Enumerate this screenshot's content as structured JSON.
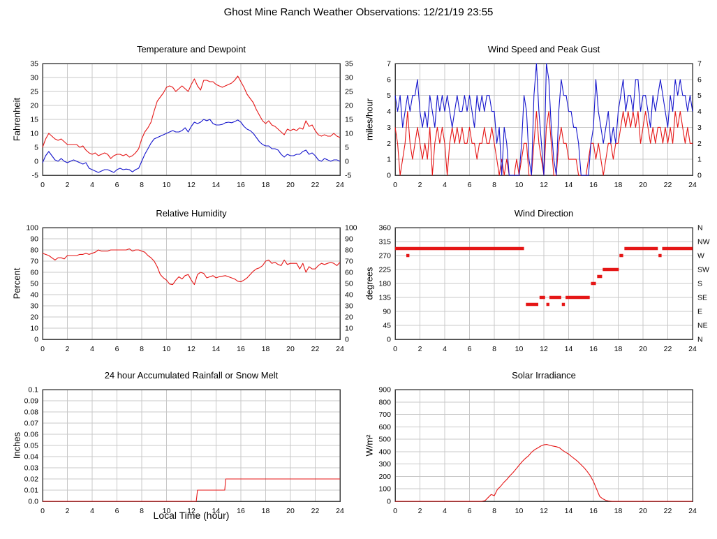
{
  "page_title": "Ghost Mine Ranch Weather Observations: 12/21/19 23:55",
  "colors": {
    "red": "#e51616",
    "blue": "#1414cc",
    "grid": "#c8c8c8",
    "frame": "#404040",
    "text": "#000000"
  },
  "x_axis": {
    "min": 0,
    "max": 24,
    "ticks": [
      0,
      2,
      4,
      6,
      8,
      10,
      12,
      14,
      16,
      18,
      20,
      22,
      24
    ],
    "label": "Local Time (hour)"
  },
  "chart_data": [
    {
      "type": "line",
      "title": "Temperature and Dewpoint",
      "ylabel": "Fahrenheit",
      "ylim": [
        -5,
        35
      ],
      "ytick_values": [
        -5,
        0,
        5,
        10,
        15,
        20,
        25,
        30,
        35
      ],
      "ytick_labels": [
        "-5",
        "0",
        "5",
        "10",
        "15",
        "20",
        "25",
        "30",
        "35"
      ],
      "right_ticks": "mirror",
      "series": [
        {
          "name": "temperature",
          "color": "red",
          "x_start": 0,
          "x_step": 0.25,
          "values": [
            5,
            8,
            10,
            9,
            8,
            7.5,
            8,
            7,
            6,
            6,
            6,
            6,
            5,
            5.5,
            4,
            3,
            2.5,
            3,
            2,
            2.5,
            3,
            2.5,
            1,
            2,
            2.5,
            2.5,
            2,
            2.5,
            1.5,
            2,
            3,
            4.5,
            8,
            10.5,
            12,
            14,
            18,
            21.5,
            23,
            24.5,
            26.5,
            27,
            26.5,
            25,
            26,
            27,
            26,
            25,
            27.5,
            29.5,
            27,
            25.5,
            29,
            29,
            28.5,
            28.5,
            27.5,
            27,
            26.5,
            27,
            27.5,
            28,
            29,
            30.5,
            28.5,
            26.5,
            24,
            22.5,
            21,
            18.5,
            16.5,
            14.5,
            13.5,
            14.5,
            13,
            12.5,
            11.5,
            10.5,
            9.5,
            11.5,
            11,
            11.5,
            11,
            12,
            11.5,
            14.5,
            12.5,
            13,
            11,
            9.5,
            9,
            9.5,
            9,
            9,
            10,
            9,
            8.5
          ]
        },
        {
          "name": "dewpoint",
          "color": "blue",
          "x_start": 0,
          "x_step": 0.25,
          "values": [
            -0.5,
            2,
            3.5,
            2,
            0.5,
            0,
            1,
            0,
            -0.5,
            0,
            0.5,
            0,
            -0.5,
            -1,
            -0.5,
            -2.5,
            -3,
            -3.5,
            -4,
            -3.5,
            -3,
            -3,
            -3.5,
            -4,
            -3,
            -2.5,
            -3,
            -2.8,
            -3,
            -3.8,
            -3,
            -2.5,
            0,
            2.5,
            4.5,
            6.5,
            8,
            8.5,
            9,
            9.5,
            10,
            10.5,
            11,
            10.5,
            10.5,
            11,
            12,
            10.5,
            12.5,
            14,
            13.5,
            14,
            15,
            14.5,
            15,
            13.5,
            13,
            13,
            13.2,
            13.8,
            14,
            13.8,
            14.2,
            14.8,
            14,
            12.5,
            11.5,
            11,
            10,
            8.5,
            7,
            6,
            5.5,
            5.5,
            4.5,
            4.5,
            4,
            2.5,
            1.5,
            2.5,
            2,
            2,
            2.5,
            2.5,
            3.5,
            4,
            2.5,
            3,
            2,
            0.5,
            0,
            1,
            0.5,
            0,
            0.5,
            0.5,
            0
          ]
        }
      ]
    },
    {
      "type": "line",
      "title": "Wind Speed and Peak Gust",
      "ylabel": "miles/hour",
      "ylim": [
        0,
        7
      ],
      "ytick_values": [
        0,
        1,
        2,
        3,
        4,
        5,
        6,
        7
      ],
      "ytick_labels": [
        "0",
        "1",
        "2",
        "3",
        "4",
        "5",
        "6",
        "7"
      ],
      "right_ticks": "mirror",
      "series": [
        {
          "name": "wind-speed",
          "color": "red",
          "x_start": 0,
          "x_step": 0.2,
          "values": [
            3,
            2,
            0,
            1,
            2,
            4,
            2,
            1,
            2,
            3,
            2,
            1,
            2,
            1,
            3,
            0,
            2,
            3,
            2,
            3,
            2,
            0,
            2,
            3,
            2,
            3,
            2,
            3,
            2,
            2,
            3,
            2,
            2,
            1,
            2,
            2,
            3,
            2,
            2,
            3,
            2,
            1,
            0,
            1,
            0,
            1,
            0,
            0,
            0,
            1,
            0,
            1,
            2,
            2,
            0,
            0,
            2,
            4,
            2,
            1,
            0,
            3,
            4,
            2,
            0,
            0,
            2,
            3,
            2,
            2,
            1,
            1,
            1,
            1,
            0,
            0,
            0,
            0,
            1,
            2,
            2,
            1,
            2,
            1,
            0,
            1,
            2,
            2,
            1,
            2,
            2,
            3,
            4,
            3,
            4,
            3,
            4,
            3,
            4,
            2,
            3,
            4,
            3,
            2,
            3,
            2,
            3,
            3,
            2,
            3,
            2,
            3,
            2,
            4,
            3,
            4,
            3,
            2,
            3,
            2,
            2
          ]
        },
        {
          "name": "peak-gust",
          "color": "blue",
          "x_start": 0,
          "x_step": 0.2,
          "values": [
            5,
            4,
            5,
            3,
            4,
            5,
            4,
            5,
            5,
            6,
            4,
            3,
            4,
            3,
            5,
            4,
            3,
            5,
            4,
            5,
            4,
            5,
            4,
            3,
            4,
            5,
            4,
            4,
            5,
            4,
            5,
            4,
            3,
            5,
            4,
            5,
            4,
            5,
            5,
            4,
            4,
            2,
            3,
            0,
            3,
            2,
            0,
            0,
            0,
            0,
            0,
            2,
            5,
            4,
            1,
            0,
            5,
            7,
            4,
            2,
            0,
            7,
            6,
            3,
            1,
            0,
            4,
            6,
            5,
            5,
            4,
            4,
            3,
            3,
            2,
            0,
            0,
            0,
            0,
            2,
            3,
            6,
            4,
            3,
            2,
            3,
            4,
            2,
            3,
            2,
            4,
            5,
            6,
            4,
            5,
            5,
            4,
            6,
            6,
            4,
            5,
            5,
            4,
            3,
            5,
            4,
            5,
            6,
            5,
            4,
            3,
            5,
            4,
            6,
            5,
            6,
            5,
            5,
            4,
            5,
            4
          ]
        }
      ]
    },
    {
      "type": "line",
      "title": "Relative Humidity",
      "ylabel": "Percent",
      "ylim": [
        0,
        100
      ],
      "ytick_values": [
        0,
        10,
        20,
        30,
        40,
        50,
        60,
        70,
        80,
        90,
        100
      ],
      "ytick_labels": [
        "0",
        "10",
        "20",
        "30",
        "40",
        "50",
        "60",
        "70",
        "80",
        "90",
        "100"
      ],
      "right_ticks": "mirror",
      "series": [
        {
          "name": "relative-humidity",
          "color": "red",
          "x_start": 0,
          "x_step": 0.25,
          "values": [
            77,
            76,
            75,
            73,
            71,
            73,
            73,
            72,
            75,
            75,
            75,
            75,
            76,
            76,
            77,
            76,
            77,
            78,
            80,
            79,
            79,
            79,
            80,
            80,
            80,
            80,
            80,
            80,
            81,
            79,
            80,
            80,
            79,
            78,
            75,
            73,
            70,
            65,
            58,
            55,
            53,
            49.5,
            49,
            53,
            56,
            54,
            57,
            58,
            53,
            49,
            58,
            60,
            59,
            55,
            56,
            57,
            55,
            56,
            56.5,
            57,
            56,
            55,
            54,
            52,
            51.5,
            53,
            55,
            58,
            61,
            63,
            64,
            66,
            70,
            71,
            68,
            69,
            67,
            66,
            71,
            67,
            68,
            68,
            68,
            63,
            68,
            60,
            65,
            63,
            63,
            66,
            68,
            67,
            68,
            69,
            68,
            66,
            69
          ]
        }
      ]
    },
    {
      "type": "segments",
      "title": "Wind Direction",
      "ylabel": "degrees",
      "ylim": [
        0,
        360
      ],
      "ytick_values": [
        0,
        45,
        90,
        135,
        180,
        225,
        270,
        315,
        360
      ],
      "ytick_labels": [
        "0",
        "45",
        "90",
        "135",
        "180",
        "225",
        "270",
        "315",
        "360"
      ],
      "right_ticks": [
        "N",
        "NE",
        "E",
        "SE",
        "S",
        "SW",
        "W",
        "NW",
        "N"
      ],
      "series": [
        {
          "name": "wind-direction",
          "color": "red",
          "segments": [
            [
              0,
              10.4,
              292.5
            ],
            [
              0.95,
              1.1,
              270
            ],
            [
              10.55,
              11.55,
              112.5
            ],
            [
              11.65,
              12.1,
              135
            ],
            [
              12.25,
              12.4,
              112.5
            ],
            [
              12.45,
              13.4,
              135
            ],
            [
              13.5,
              13.65,
              112.5
            ],
            [
              13.75,
              15.7,
              135
            ],
            [
              15.8,
              16.2,
              180
            ],
            [
              16.3,
              16.7,
              202.5
            ],
            [
              16.75,
              18.05,
              225
            ],
            [
              18.1,
              18.4,
              270
            ],
            [
              18.5,
              21.2,
              292.5
            ],
            [
              21.3,
              21.45,
              270
            ],
            [
              21.55,
              24,
              292.5
            ]
          ]
        }
      ]
    },
    {
      "type": "line",
      "title": "24 hour Accumulated Rainfall or Snow Melt",
      "ylabel": "Inches",
      "ylim": [
        0,
        0.1
      ],
      "ytick_values": [
        0,
        0.01,
        0.02,
        0.03,
        0.04,
        0.05,
        0.06,
        0.07,
        0.08,
        0.09,
        0.1
      ],
      "ytick_labels": [
        "0.0",
        "0.01",
        "0.02",
        "0.03",
        "0.04",
        "0.05",
        "0.06",
        "0.07",
        "0.08",
        "0.09",
        "0.1"
      ],
      "right_ticks": "none",
      "xlabel": "Local Time (hour)",
      "series": [
        {
          "name": "rainfall",
          "color": "red",
          "x": [
            0,
            12.4,
            12.5,
            14.7,
            14.78,
            24
          ],
          "y": [
            0,
            0,
            0.01,
            0.01,
            0.02,
            0.02
          ]
        }
      ]
    },
    {
      "type": "line",
      "title": "Solar Irradiance",
      "ylabel": "W/m²",
      "ylim": [
        0,
        900
      ],
      "ytick_values": [
        0,
        100,
        200,
        300,
        400,
        500,
        600,
        700,
        800,
        900
      ],
      "ytick_labels": [
        "0",
        "100",
        "200",
        "300",
        "400",
        "500",
        "600",
        "700",
        "800",
        "900"
      ],
      "right_ticks": "none",
      "series": [
        {
          "name": "solar-irradiance",
          "color": "red",
          "x_start": 0,
          "x_step": 0.25,
          "values": [
            0,
            0,
            0,
            0,
            0,
            0,
            0,
            0,
            0,
            0,
            0,
            0,
            0,
            0,
            0,
            0,
            0,
            0,
            0,
            0,
            0,
            0,
            0,
            0,
            0,
            0,
            0,
            0,
            0,
            5,
            30,
            55,
            45,
            95,
            120,
            150,
            175,
            205,
            230,
            260,
            290,
            320,
            345,
            365,
            395,
            415,
            430,
            445,
            455,
            458,
            450,
            445,
            440,
            432,
            412,
            395,
            380,
            360,
            340,
            320,
            295,
            270,
            240,
            205,
            160,
            100,
            40,
            20,
            8,
            2,
            0,
            0,
            0,
            0,
            0,
            0,
            0,
            0,
            0,
            0,
            0,
            0,
            0,
            0,
            0,
            0,
            0,
            0,
            0,
            0,
            0,
            0,
            0,
            0,
            0,
            0,
            0
          ]
        }
      ]
    }
  ]
}
